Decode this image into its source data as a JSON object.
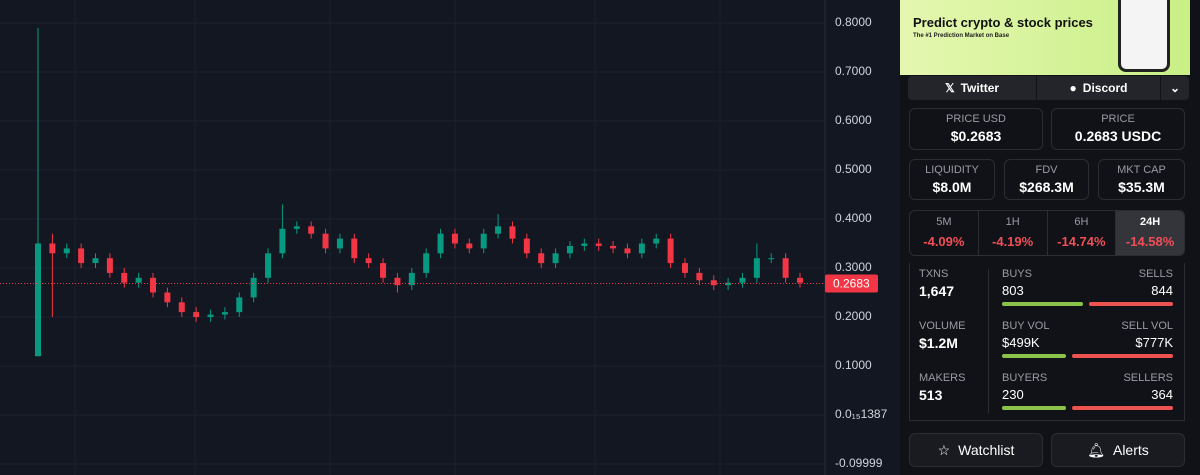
{
  "chart_data": {
    "type": "candlestick",
    "open": [
      0.12,
      0.35,
      0.33,
      0.34,
      0.31,
      0.32,
      0.29,
      0.27,
      0.28,
      0.25,
      0.23,
      0.21,
      0.2,
      0.205,
      0.21,
      0.24,
      0.28,
      0.33,
      0.38,
      0.385,
      0.37,
      0.34,
      0.36,
      0.32,
      0.31,
      0.28,
      0.265,
      0.29,
      0.33,
      0.37,
      0.35,
      0.34,
      0.37,
      0.385,
      0.36,
      0.33,
      0.31,
      0.33,
      0.345,
      0.35,
      0.345,
      0.34,
      0.33,
      0.35,
      0.36,
      0.31,
      0.29,
      0.275,
      0.265,
      0.27,
      0.28,
      0.32,
      0.32,
      0.28
    ],
    "high": [
      0.79,
      0.37,
      0.35,
      0.35,
      0.33,
      0.33,
      0.3,
      0.29,
      0.29,
      0.26,
      0.24,
      0.22,
      0.215,
      0.22,
      0.25,
      0.29,
      0.34,
      0.43,
      0.395,
      0.395,
      0.38,
      0.37,
      0.37,
      0.33,
      0.32,
      0.29,
      0.3,
      0.34,
      0.38,
      0.38,
      0.36,
      0.38,
      0.41,
      0.395,
      0.37,
      0.34,
      0.34,
      0.355,
      0.36,
      0.36,
      0.355,
      0.35,
      0.36,
      0.37,
      0.37,
      0.32,
      0.3,
      0.285,
      0.28,
      0.29,
      0.35,
      0.33,
      0.33,
      0.29
    ],
    "low": [
      0.12,
      0.2,
      0.32,
      0.3,
      0.3,
      0.28,
      0.26,
      0.26,
      0.24,
      0.22,
      0.2,
      0.19,
      0.19,
      0.195,
      0.2,
      0.23,
      0.27,
      0.32,
      0.37,
      0.36,
      0.33,
      0.33,
      0.31,
      0.3,
      0.27,
      0.25,
      0.255,
      0.28,
      0.32,
      0.34,
      0.33,
      0.33,
      0.36,
      0.35,
      0.32,
      0.3,
      0.3,
      0.32,
      0.335,
      0.335,
      0.33,
      0.32,
      0.32,
      0.34,
      0.3,
      0.28,
      0.265,
      0.255,
      0.255,
      0.26,
      0.27,
      0.31,
      0.27,
      0.26
    ],
    "close": [
      0.35,
      0.33,
      0.34,
      0.31,
      0.32,
      0.29,
      0.27,
      0.28,
      0.25,
      0.23,
      0.21,
      0.2,
      0.205,
      0.21,
      0.24,
      0.28,
      0.33,
      0.38,
      0.385,
      0.37,
      0.34,
      0.36,
      0.32,
      0.31,
      0.28,
      0.265,
      0.29,
      0.33,
      0.37,
      0.35,
      0.34,
      0.37,
      0.385,
      0.36,
      0.33,
      0.31,
      0.33,
      0.345,
      0.35,
      0.345,
      0.34,
      0.33,
      0.35,
      0.36,
      0.31,
      0.29,
      0.275,
      0.265,
      0.27,
      0.28,
      0.32,
      0.32,
      0.28,
      0.27
    ],
    "up_color": "#089981",
    "down_color": "#f23645",
    "ylim": [
      -0.1224,
      0.8469
    ],
    "yticks": [
      {
        "value": 0.8,
        "label": "0.8000"
      },
      {
        "value": 0.7,
        "label": "0.7000"
      },
      {
        "value": 0.6,
        "label": "0.6000"
      },
      {
        "value": 0.5,
        "label": "0.5000"
      },
      {
        "value": 0.4,
        "label": "0.4000"
      },
      {
        "value": 0.3,
        "label": "0.3000"
      },
      {
        "value": 0.2,
        "label": "0.2000"
      },
      {
        "value": 0.1,
        "label": "0.1000"
      },
      {
        "value": 1.387e-16,
        "label": "0.0₁₅1387"
      },
      -0.09999
    ],
    "grid": true,
    "last_price": 0.2683
  },
  "banner": {
    "title": "Predict crypto & stock prices",
    "subtitle": "The #1 Prediction Market on Base"
  },
  "social": [
    "Twitter",
    "Discord"
  ],
  "price": [
    {
      "label": "PRICE USD",
      "value": "$0.2683"
    },
    {
      "label": "PRICE",
      "value": "0.2683 USDC"
    }
  ],
  "metrics": [
    {
      "label": "LIQUIDITY",
      "value": "$8.0M"
    },
    {
      "label": "FDV",
      "value": "$268.3M"
    },
    {
      "label": "MKT CAP",
      "value": "$35.3M"
    }
  ],
  "changes": [
    {
      "label": "5M",
      "value": "-4.09%"
    },
    {
      "label": "1H",
      "value": "-4.19%"
    },
    {
      "label": "6H",
      "value": "-14.74%"
    },
    {
      "label": "24H",
      "value": "-14.58%"
    }
  ],
  "stats": [
    {
      "label": "TXNS",
      "value": "1,647",
      "left_label": "BUYS",
      "left_value": "803",
      "right_label": "SELLS",
      "right_value": "844"
    },
    {
      "label": "VOLUME",
      "value": "$1.2M",
      "left_label": "BUY VOL",
      "left_value": "$499K",
      "right_label": "SELL VOL",
      "right_value": "$777K"
    },
    {
      "label": "MAKERS",
      "value": "513",
      "left_label": "BUYERS",
      "left_value": "230",
      "right_label": "SELLERS",
      "right_value": "364"
    }
  ],
  "actions": [
    "Watchlist",
    "Alerts"
  ]
}
